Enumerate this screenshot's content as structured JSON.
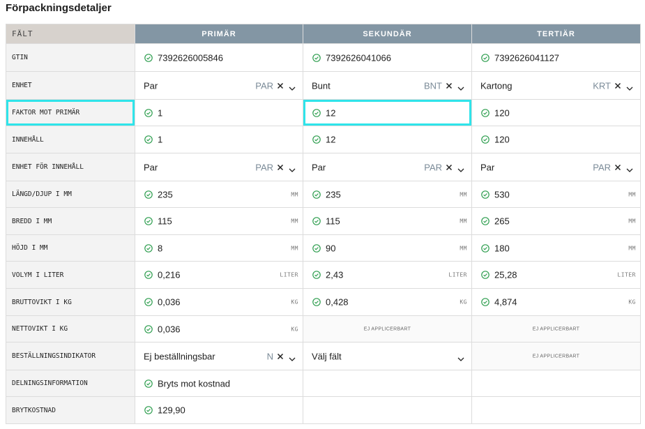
{
  "header": {
    "title": "Förpackningsdetaljer"
  },
  "table": {
    "columns": [
      "FÄLT",
      "PRIMÄR",
      "SEKUNDÄR",
      "TERTIÄR"
    ],
    "rows": [
      {
        "label": "GTIN",
        "cells": [
          {
            "value": "7392626005846"
          },
          {
            "value": "7392626041066"
          },
          {
            "value": "7392626041127"
          }
        ]
      },
      {
        "label": "ENHET",
        "cells": [
          {
            "value": "Par",
            "code": "PAR"
          },
          {
            "value": "Bunt",
            "code": "BNT"
          },
          {
            "value": "Kartong",
            "code": "KRT"
          }
        ]
      },
      {
        "label": "FAKTOR MOT PRIMÄR",
        "highlight": true,
        "cells": [
          {
            "value": "1"
          },
          {
            "value": "12",
            "highlight": true
          },
          {
            "value": "120"
          }
        ]
      },
      {
        "label": "INNEHÅLL",
        "cells": [
          {
            "value": "1"
          },
          {
            "value": "12"
          },
          {
            "value": "120"
          }
        ]
      },
      {
        "label": "ENHET FÖR INNEHÅLL",
        "cells": [
          {
            "value": "Par",
            "code": "PAR"
          },
          {
            "value": "Par",
            "code": "PAR"
          },
          {
            "value": "Par",
            "code": "PAR"
          }
        ]
      },
      {
        "label": "LÄNGD/DJUP I MM",
        "cells": [
          {
            "value": "235",
            "unit": "MM"
          },
          {
            "value": "235",
            "unit": "MM"
          },
          {
            "value": "530",
            "unit": "MM"
          }
        ]
      },
      {
        "label": "BREDD I MM",
        "cells": [
          {
            "value": "115",
            "unit": "MM"
          },
          {
            "value": "115",
            "unit": "MM"
          },
          {
            "value": "265",
            "unit": "MM"
          }
        ]
      },
      {
        "label": "HÖJD I MM",
        "cells": [
          {
            "value": "8",
            "unit": "MM"
          },
          {
            "value": "90",
            "unit": "MM"
          },
          {
            "value": "180",
            "unit": "MM"
          }
        ]
      },
      {
        "label": "VOLYM I LITER",
        "cells": [
          {
            "value": "0,216",
            "unit": "LITER"
          },
          {
            "value": "2,43",
            "unit": "LITER"
          },
          {
            "value": "25,28",
            "unit": "LITER"
          }
        ]
      },
      {
        "label": "BRUTTOVIKT I KG",
        "cells": [
          {
            "value": "0,036",
            "unit": "KG"
          },
          {
            "value": "0,428",
            "unit": "KG"
          },
          {
            "value": "4,874",
            "unit": "KG"
          }
        ]
      },
      {
        "label": "NETTOVIKT I KG",
        "cells": [
          {
            "value": "0,036",
            "unit": "KG"
          },
          {
            "note": "EJ APPLICERBART"
          },
          {
            "note": "EJ APPLICERBART"
          }
        ]
      },
      {
        "label": "BESTÄLLNINGSINDIKATOR",
        "cells": [
          {
            "value": "Ej beställningsbar",
            "code": "N"
          },
          {
            "placeholder": "Välj fält"
          },
          {
            "note": "EJ APPLICERBART"
          }
        ]
      },
      {
        "label": "DELNINGSINFORMATION",
        "cells": [
          {
            "value": "Bryts mot kostnad"
          },
          null,
          null
        ]
      },
      {
        "label": "BRYTKOSTNAD",
        "cells": [
          {
            "value": "129,90"
          },
          null,
          null
        ]
      }
    ]
  }
}
